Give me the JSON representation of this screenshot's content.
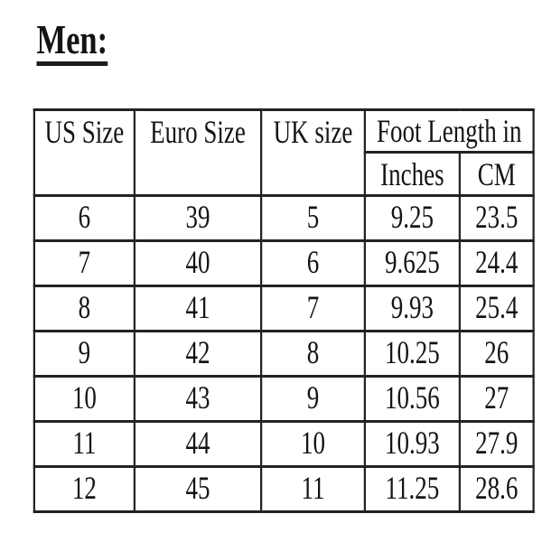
{
  "page": {
    "title": "Men:"
  },
  "table": {
    "headers": {
      "us_size": "US Size",
      "euro_size": "Euro Size",
      "uk_size": "UK size",
      "foot_length_group": "Foot Length in",
      "inches": "Inches",
      "cm": "CM"
    },
    "rows": [
      [
        "6",
        "39",
        "5",
        "9.25",
        "23.5"
      ],
      [
        "7",
        "40",
        "6",
        "9.625",
        "24.4"
      ],
      [
        "8",
        "41",
        "7",
        "9.93",
        "25.4"
      ],
      [
        "9",
        "42",
        "8",
        "10.25",
        "26"
      ],
      [
        "10",
        "43",
        "9",
        "10.56",
        "27"
      ],
      [
        "11",
        "44",
        "10",
        "10.93",
        "27.9"
      ],
      [
        "12",
        "45",
        "11",
        "11.25",
        "28.6"
      ]
    ]
  },
  "colors": {
    "text": "#141414",
    "border": "#222222",
    "background": "#ffffff"
  }
}
